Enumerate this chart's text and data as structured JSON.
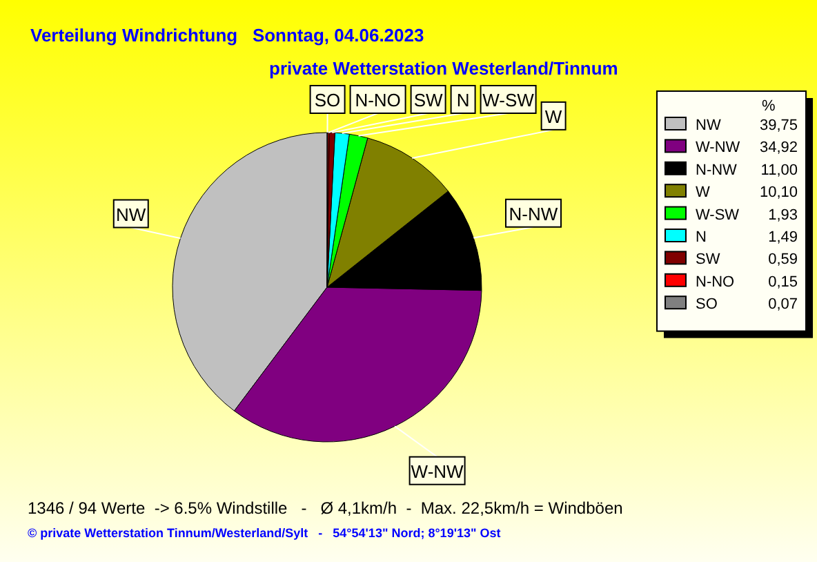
{
  "chart_data": {
    "type": "pie",
    "title": "Verteilung Windrichtung   Sonntag, 04.06.2023",
    "subtitle": "private Wetterstation Westerland/Tinnum",
    "categories": [
      "NW",
      "W-NW",
      "N-NW",
      "W",
      "W-SW",
      "N",
      "SW",
      "N-NO",
      "SO"
    ],
    "values": [
      39.75,
      34.92,
      11.0,
      10.1,
      1.93,
      1.49,
      0.59,
      0.15,
      0.07
    ],
    "value_labels": [
      "39,75",
      "34,92",
      "11,00",
      "10,10",
      "1,93",
      "1,49",
      "0,59",
      "0,15",
      "0,07"
    ],
    "colors": [
      "#c0c0c0",
      "#800080",
      "#000000",
      "#808000",
      "#00ff00",
      "#00ffff",
      "#800000",
      "#ff0000",
      "#808080"
    ],
    "legend": "right",
    "legend_title": "%",
    "annotations": [
      "1346 / 94 Werte  -> 6.5% Windstille   -   Ø 4,1km/h  -  Max. 22,5km/h = Windböen",
      "© private Wetterstation Tinnum/Westerland/Sylt   -   54°54'13\" Nord; 8°19'13\" Ost"
    ]
  }
}
